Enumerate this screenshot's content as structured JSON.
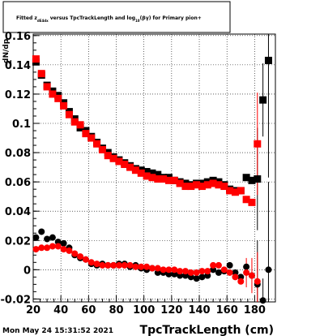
{
  "title_text": "Fitted  z",
  "title_sub": "dE4dx",
  "title_rest1": "  versus  TpcTrackLength and log",
  "title_sub2": "10",
  "title_rest2": "(βγ) for Primary pion+",
  "ylabel": "dN/dp",
  "ylabel_prefix": "z",
  "xlabel": "TpcTrackLength (cm)",
  "timestamp": "Mon May 24 15:31:52 2021",
  "colors": {
    "black": "#000000",
    "red": "#ff0000",
    "grid": "#000000"
  },
  "chart_data": {
    "type": "scatter",
    "title": "Fitted z_dE4dx versus TpcTrackLength and log10(βγ) for Primary pion+",
    "xlabel": "TpcTrackLength (cm)",
    "xlim": [
      20,
      195
    ],
    "ylim": [
      -0.022,
      0.161
    ],
    "x_ticks": [
      20,
      40,
      60,
      80,
      100,
      120,
      140,
      160,
      180
    ],
    "y_ticks": [
      -0.02,
      0,
      0.02,
      0.04,
      0.06,
      0.08,
      0.1,
      0.12,
      0.14,
      0.16
    ],
    "x_tick_labels": [
      "20",
      "40",
      "60",
      "80",
      "100",
      "120",
      "140",
      "160",
      "180"
    ],
    "y_tick_labels": [
      "-0.02",
      "0",
      "0.02",
      "0.04",
      "0.06",
      "0.08",
      "0.1",
      "0.12",
      "0.14",
      "0.16"
    ],
    "grid": true,
    "series": [
      {
        "name": "black_squares",
        "color": "#000000",
        "marker": "square",
        "points": [
          [
            22,
            0.142
          ],
          [
            26,
            0.133
          ],
          [
            30,
            0.126
          ],
          [
            34,
            0.122
          ],
          [
            38,
            0.119
          ],
          [
            42,
            0.114
          ],
          [
            46,
            0.108
          ],
          [
            50,
            0.103
          ],
          [
            54,
            0.097
          ],
          [
            58,
            0.095
          ],
          [
            62,
            0.091
          ],
          [
            66,
            0.087
          ],
          [
            70,
            0.083
          ],
          [
            74,
            0.08
          ],
          [
            78,
            0.077
          ],
          [
            82,
            0.075
          ],
          [
            86,
            0.073
          ],
          [
            90,
            0.071
          ],
          [
            94,
            0.069
          ],
          [
            98,
            0.068
          ],
          [
            102,
            0.067
          ],
          [
            106,
            0.066
          ],
          [
            110,
            0.065
          ],
          [
            114,
            0.063
          ],
          [
            118,
            0.063
          ],
          [
            122,
            0.061
          ],
          [
            126,
            0.06
          ],
          [
            130,
            0.059
          ],
          [
            134,
            0.058
          ],
          [
            138,
            0.059
          ],
          [
            142,
            0.059
          ],
          [
            146,
            0.06
          ],
          [
            150,
            0.061
          ],
          [
            154,
            0.06
          ],
          [
            158,
            0.058
          ],
          [
            162,
            0.055
          ],
          [
            166,
            0.054
          ],
          [
            170,
            0.054
          ],
          [
            174,
            0.063
          ],
          [
            178,
            0.061
          ],
          [
            182,
            0.062
          ],
          [
            186,
            0.116
          ],
          [
            190,
            0.143
          ]
        ],
        "errors": [
          [
            182,
            0.035
          ],
          [
            186,
            0.025
          ],
          [
            190,
            0.08
          ]
        ]
      },
      {
        "name": "red_squares",
        "color": "#ff0000",
        "marker": "square",
        "points": [
          [
            22,
            0.144
          ],
          [
            26,
            0.134
          ],
          [
            30,
            0.125
          ],
          [
            34,
            0.12
          ],
          [
            38,
            0.117
          ],
          [
            42,
            0.112
          ],
          [
            46,
            0.106
          ],
          [
            50,
            0.101
          ],
          [
            54,
            0.099
          ],
          [
            58,
            0.093
          ],
          [
            62,
            0.09
          ],
          [
            66,
            0.086
          ],
          [
            70,
            0.082
          ],
          [
            74,
            0.078
          ],
          [
            78,
            0.076
          ],
          [
            82,
            0.074
          ],
          [
            86,
            0.072
          ],
          [
            90,
            0.07
          ],
          [
            94,
            0.068
          ],
          [
            98,
            0.066
          ],
          [
            102,
            0.064
          ],
          [
            106,
            0.063
          ],
          [
            110,
            0.062
          ],
          [
            114,
            0.062
          ],
          [
            118,
            0.061
          ],
          [
            122,
            0.061
          ],
          [
            126,
            0.059
          ],
          [
            130,
            0.057
          ],
          [
            134,
            0.057
          ],
          [
            138,
            0.058
          ],
          [
            142,
            0.057
          ],
          [
            146,
            0.058
          ],
          [
            150,
            0.059
          ],
          [
            154,
            0.058
          ],
          [
            158,
            0.057
          ],
          [
            162,
            0.054
          ],
          [
            166,
            0.053
          ],
          [
            170,
            0.054
          ],
          [
            174,
            0.048
          ],
          [
            178,
            0.046
          ],
          [
            182,
            0.086
          ]
        ],
        "errors": [
          [
            182,
            0.035
          ]
        ]
      },
      {
        "name": "black_circles",
        "color": "#000000",
        "marker": "circle",
        "points": [
          [
            22,
            0.022
          ],
          [
            26,
            0.026
          ],
          [
            30,
            0.021
          ],
          [
            34,
            0.022
          ],
          [
            38,
            0.019
          ],
          [
            42,
            0.018
          ],
          [
            46,
            0.015
          ],
          [
            50,
            0.01
          ],
          [
            54,
            0.008
          ],
          [
            58,
            0.007
          ],
          [
            62,
            0.004
          ],
          [
            66,
            0.003
          ],
          [
            70,
            0.004
          ],
          [
            74,
            0.003
          ],
          [
            78,
            0.003
          ],
          [
            82,
            0.004
          ],
          [
            86,
            0.004
          ],
          [
            90,
            0.002
          ],
          [
            94,
            0.003
          ],
          [
            98,
            0.001
          ],
          [
            102,
            0.0
          ],
          [
            106,
            0.001
          ],
          [
            110,
            -0.002
          ],
          [
            114,
            -0.002
          ],
          [
            118,
            -0.003
          ],
          [
            122,
            -0.003
          ],
          [
            126,
            -0.004
          ],
          [
            130,
            -0.004
          ],
          [
            134,
            -0.005
          ],
          [
            138,
            -0.006
          ],
          [
            142,
            -0.005
          ],
          [
            146,
            -0.004
          ],
          [
            150,
            0.0
          ],
          [
            154,
            -0.002
          ],
          [
            158,
            -0.001
          ],
          [
            162,
            0.003
          ],
          [
            166,
            -0.002
          ],
          [
            170,
            -0.005
          ],
          [
            174,
            0.002
          ],
          [
            178,
            -0.004
          ],
          [
            182,
            -0.01
          ],
          [
            186,
            -0.021
          ],
          [
            190,
            0.0
          ]
        ],
        "errors": [
          [
            182,
            0.03
          ],
          [
            186,
            0.015
          ],
          [
            190,
            0.06
          ]
        ]
      },
      {
        "name": "red_circles",
        "color": "#ff0000",
        "marker": "circle",
        "points": [
          [
            22,
            0.014
          ],
          [
            26,
            0.015
          ],
          [
            30,
            0.015
          ],
          [
            34,
            0.016
          ],
          [
            38,
            0.016
          ],
          [
            42,
            0.014
          ],
          [
            46,
            0.013
          ],
          [
            50,
            0.011
          ],
          [
            54,
            0.009
          ],
          [
            58,
            0.007
          ],
          [
            62,
            0.005
          ],
          [
            66,
            0.004
          ],
          [
            70,
            0.003
          ],
          [
            74,
            0.003
          ],
          [
            78,
            0.003
          ],
          [
            82,
            0.003
          ],
          [
            86,
            0.003
          ],
          [
            90,
            0.003
          ],
          [
            94,
            0.002
          ],
          [
            98,
            0.002
          ],
          [
            102,
            0.002
          ],
          [
            106,
            0.001
          ],
          [
            110,
            0.001
          ],
          [
            114,
            0.0
          ],
          [
            118,
            0.0
          ],
          [
            122,
            0.0
          ],
          [
            126,
            -0.001
          ],
          [
            130,
            -0.001
          ],
          [
            134,
            -0.002
          ],
          [
            138,
            -0.002
          ],
          [
            142,
            -0.001
          ],
          [
            146,
            -0.001
          ],
          [
            150,
            0.003
          ],
          [
            154,
            0.003
          ],
          [
            158,
            0.0
          ],
          [
            162,
            -0.002
          ],
          [
            166,
            -0.005
          ],
          [
            170,
            -0.008
          ],
          [
            174,
            -0.002
          ],
          [
            178,
            -0.004
          ],
          [
            182,
            -0.008
          ]
        ],
        "errors": [
          [
            174,
            0.01
          ],
          [
            178,
            0.012
          ],
          [
            182,
            0.02
          ]
        ]
      }
    ]
  }
}
